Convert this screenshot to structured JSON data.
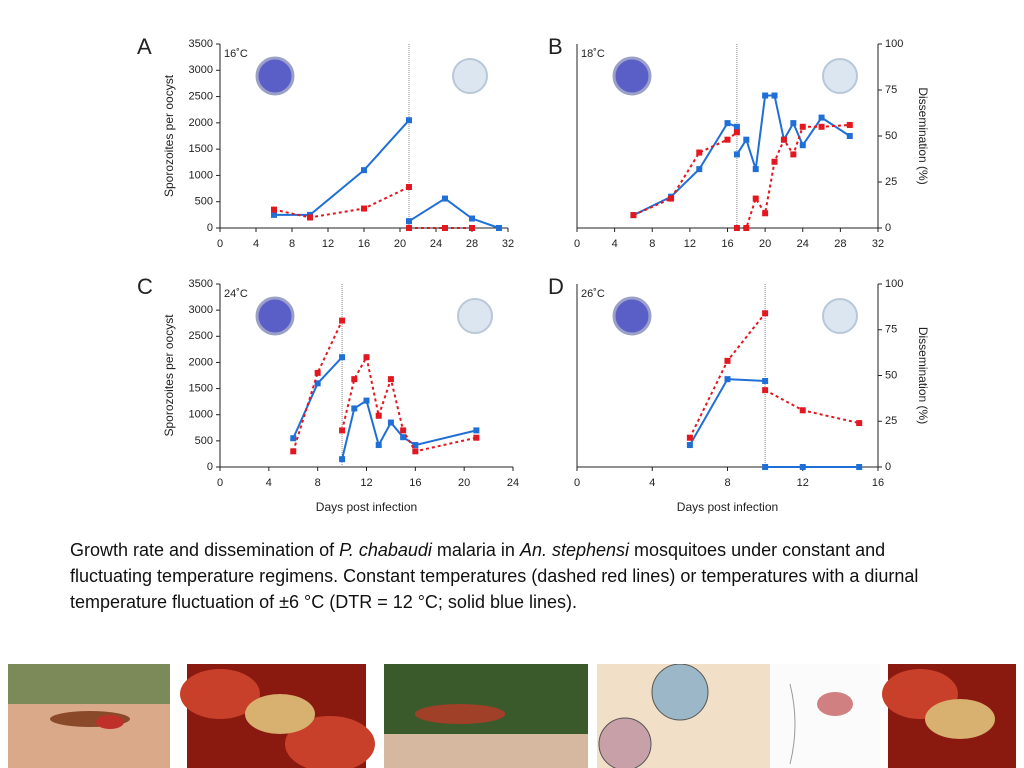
{
  "chart_data": [
    {
      "type": "line",
      "panel": "A",
      "title": "16˚C",
      "ylabel": "Sporozoites per oocyst",
      "xlim": [
        0,
        32
      ],
      "xticks": [
        0,
        4,
        8,
        12,
        16,
        20,
        24,
        28,
        32
      ],
      "ylim": [
        0,
        3500
      ],
      "yticks": [
        0,
        500,
        1000,
        1500,
        2000,
        2500,
        3000,
        3500
      ],
      "vline": 21,
      "series": [
        {
          "color": "#1f6fd6",
          "line_style": "solid",
          "x": [
            6,
            10,
            16,
            21,
            null,
            21,
            25,
            28,
            31
          ],
          "values": [
            250,
            250,
            1100,
            2050,
            null,
            130,
            560,
            180,
            0
          ]
        },
        {
          "color": "#e3171f",
          "line_style": "dashed",
          "x": [
            6,
            10,
            16,
            21,
            null,
            21,
            25,
            28
          ],
          "values": [
            350,
            200,
            370,
            780,
            null,
            0,
            0,
            0
          ]
        }
      ]
    },
    {
      "type": "line",
      "panel": "B",
      "title": "18˚C",
      "y2label": "Dissemination (%)",
      "xlim": [
        0,
        32
      ],
      "xticks": [
        0,
        4,
        8,
        12,
        16,
        20,
        24,
        28,
        32
      ],
      "y2lim": [
        0,
        100
      ],
      "y2ticks": [
        0,
        25,
        50,
        75,
        100
      ],
      "vline": 17,
      "series": [
        {
          "color": "#1f6fd6",
          "line_style": "solid",
          "axis": "y2",
          "x": [
            6,
            10,
            13,
            16,
            17,
            null,
            17,
            18,
            19,
            20,
            21,
            22,
            23,
            24,
            26,
            29
          ],
          "values": [
            7,
            17,
            32,
            57,
            55,
            null,
            40,
            48,
            32,
            72,
            72,
            48,
            57,
            45,
            60,
            50
          ]
        },
        {
          "color": "#e3171f",
          "line_style": "dashed",
          "axis": "y2",
          "x": [
            6,
            10,
            13,
            16,
            17,
            null,
            17,
            18,
            19,
            20,
            21,
            22,
            23,
            24,
            26,
            29
          ],
          "values": [
            7,
            16,
            41,
            48,
            52,
            null,
            0,
            0,
            16,
            8,
            36,
            48,
            40,
            55,
            55,
            56
          ]
        }
      ]
    },
    {
      "type": "line",
      "panel": "C",
      "title": "24˚C",
      "ylabel": "Sporozoites per oocyst",
      "xlabel": "Days post infection",
      "xlim": [
        0,
        24
      ],
      "xticks": [
        0,
        4,
        8,
        12,
        16,
        20,
        24
      ],
      "ylim": [
        0,
        3500
      ],
      "yticks": [
        0,
        500,
        1000,
        1500,
        2000,
        2500,
        3000,
        3500
      ],
      "vline": 10,
      "series": [
        {
          "color": "#1f6fd6",
          "line_style": "solid",
          "x": [
            6,
            8,
            10,
            null,
            10,
            11,
            12,
            13,
            14,
            15,
            16,
            21
          ],
          "values": [
            550,
            1600,
            2100,
            null,
            150,
            1120,
            1270,
            420,
            850,
            570,
            420,
            700
          ]
        },
        {
          "color": "#e3171f",
          "line_style": "dashed",
          "x": [
            6,
            8,
            10,
            null,
            10,
            11,
            12,
            13,
            14,
            15,
            16,
            21
          ],
          "values": [
            300,
            1800,
            2800,
            null,
            700,
            1680,
            2100,
            980,
            1680,
            700,
            300,
            560
          ]
        }
      ]
    },
    {
      "type": "line",
      "panel": "D",
      "title": "26˚C",
      "y2label": "Dissemination (%)",
      "xlabel": "Days post infection",
      "xlim": [
        0,
        16
      ],
      "xticks": [
        0,
        4,
        8,
        12,
        16
      ],
      "y2lim": [
        0,
        100
      ],
      "y2ticks": [
        0,
        25,
        50,
        75,
        100
      ],
      "vline": 10,
      "series": [
        {
          "color": "#1f6fd6",
          "line_style": "solid",
          "axis": "y2",
          "x": [
            6,
            8,
            10,
            null,
            10,
            12,
            15
          ],
          "values": [
            12,
            48,
            47,
            null,
            0,
            0,
            0
          ]
        },
        {
          "color": "#e3171f",
          "line_style": "dashed",
          "axis": "y2",
          "x": [
            6,
            8,
            10,
            null,
            10,
            12,
            15
          ],
          "values": [
            16,
            58,
            84,
            null,
            42,
            31,
            24
          ]
        }
      ]
    }
  ],
  "caption": [
    "Growth rate and dissemination of ",
    "P. chabaudi",
    " malaria in ",
    "An. stephensi",
    " mosquitoes under constant and fluctuating temperature regimens.  Constant temperatures (dashed red lines) or temperatures with a diurnal temperature fluctuation of ±6 °C (DTR = 12 °C; solid blue lines)."
  ]
}
